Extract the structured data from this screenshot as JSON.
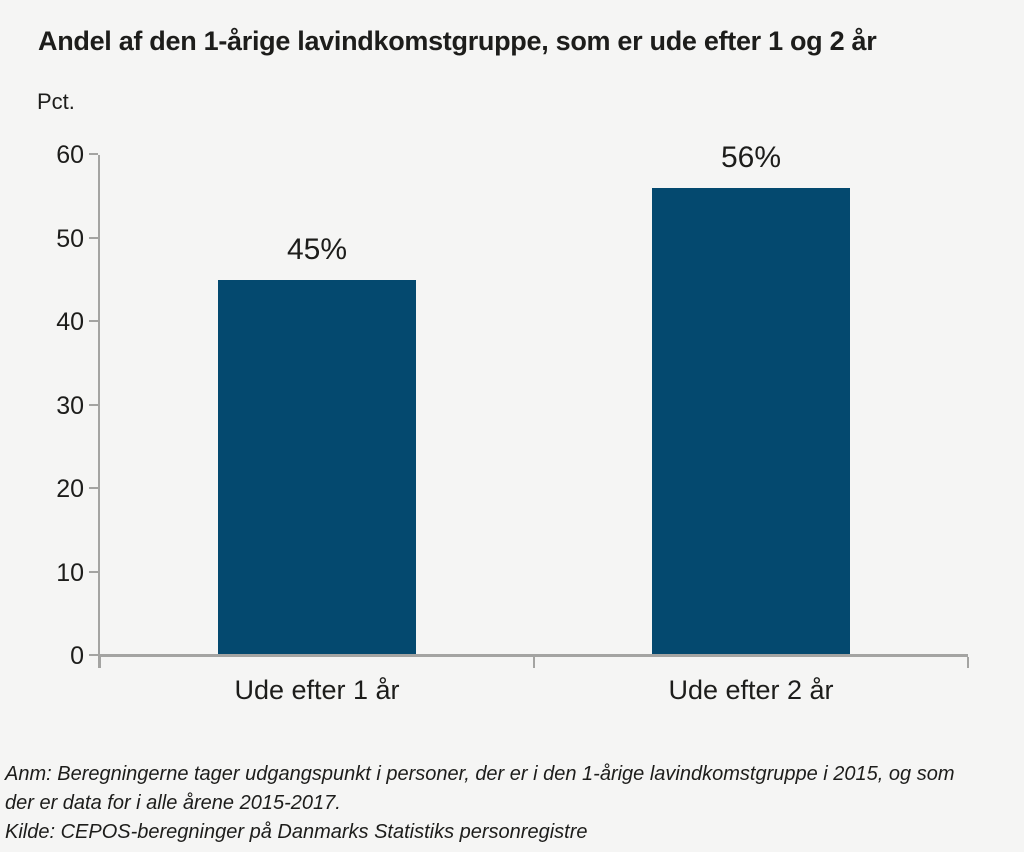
{
  "chart_data": {
    "type": "bar",
    "title": "Andel af den 1-årige lavindkomstgruppe, som er ude efter 1 og 2 år",
    "ylabel": "Pct.",
    "xlabel": "",
    "categories": [
      "Ude efter 1 år",
      "Ude efter 2 år"
    ],
    "values": [
      45,
      56
    ],
    "value_labels": [
      "45%",
      "56%"
    ],
    "ylim": [
      0,
      60
    ],
    "yticks": [
      0,
      10,
      20,
      30,
      40,
      50,
      60
    ],
    "grid": false,
    "legend": "none",
    "bar_color": "#04496f",
    "axis_color": "#a4a4a2",
    "background_color": "#f5f5f4",
    "text_color": "#1d1d1b"
  },
  "footnotes": [
    "Anm: Beregningerne tager udgangspunkt i personer, der er i den 1-årige lavindkomstgruppe i 2015, og som",
    "der er data for i alle årene 2015-2017.",
    "Kilde: CEPOS-beregninger på Danmarks Statistiks personregistre"
  ]
}
